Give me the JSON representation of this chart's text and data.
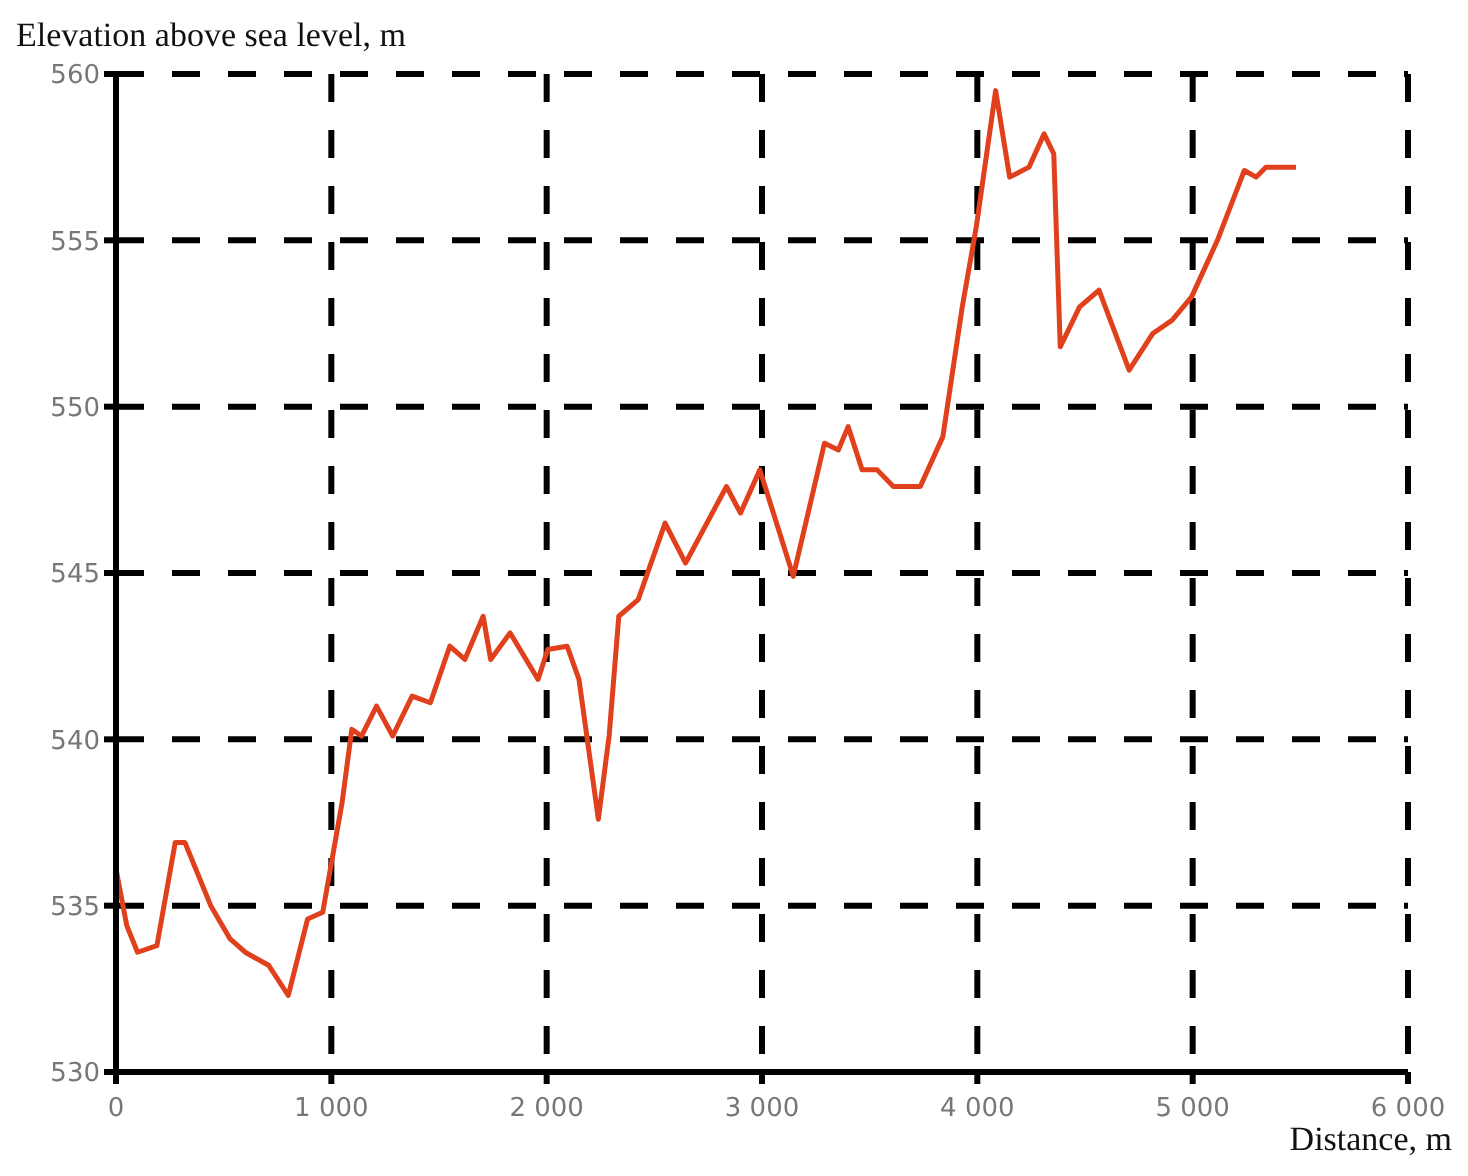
{
  "chart_data": {
    "type": "line",
    "xlabel": "Distance, m",
    "ylabel": "Elevation above sea level, m",
    "x": [
      0,
      50,
      100,
      190,
      275,
      320,
      440,
      530,
      600,
      710,
      800,
      890,
      960,
      1050,
      1095,
      1140,
      1210,
      1285,
      1375,
      1460,
      1550,
      1620,
      1705,
      1740,
      1830,
      1960,
      2005,
      2095,
      2150,
      2240,
      2290,
      2335,
      2425,
      2550,
      2645,
      2835,
      2900,
      2990,
      3145,
      3290,
      3355,
      3400,
      3465,
      3535,
      3610,
      3735,
      3840,
      3930,
      3995,
      4085,
      4150,
      4240,
      4310,
      4355,
      4385,
      4475,
      4565,
      4705,
      4815,
      4905,
      4995,
      5115,
      5240,
      5295,
      5340,
      5480
    ],
    "series": [
      {
        "color": "#e0401c",
        "values": [
          536.1,
          534.4,
          533.6,
          533.8,
          536.9,
          536.9,
          535.0,
          534.0,
          533.6,
          533.2,
          532.3,
          534.6,
          534.8,
          538.1,
          540.3,
          540.1,
          541.0,
          540.1,
          541.3,
          541.1,
          542.8,
          542.4,
          543.7,
          542.4,
          543.2,
          541.8,
          542.7,
          542.8,
          541.8,
          537.6,
          540.1,
          543.7,
          544.2,
          546.5,
          545.3,
          547.6,
          546.8,
          548.1,
          544.9,
          548.9,
          548.7,
          549.4,
          548.1,
          548.1,
          547.6,
          547.6,
          549.1,
          553.0,
          555.4,
          559.5,
          556.9,
          557.2,
          558.2,
          557.6,
          551.8,
          553.0,
          553.5,
          551.1,
          552.2,
          552.6,
          553.3,
          555.0,
          557.1,
          556.9,
          557.2,
          557.2
        ]
      }
    ],
    "xlim": [
      0,
      6000
    ],
    "xticks": [
      0,
      {
        "value": 1000,
        "label": "1 000"
      },
      {
        "value": 2000,
        "label": "2 000"
      },
      {
        "value": 3000,
        "label": "3 000"
      },
      {
        "value": 4000,
        "label": "4 000"
      },
      {
        "value": 5000,
        "label": "5 000"
      },
      {
        "value": 6000,
        "label": "6 000"
      }
    ],
    "ylim": [
      530,
      560
    ],
    "yticks": [
      530,
      535,
      540,
      545,
      550,
      555,
      560
    ],
    "grid": true,
    "marker": "none",
    "line_style": "solid"
  }
}
